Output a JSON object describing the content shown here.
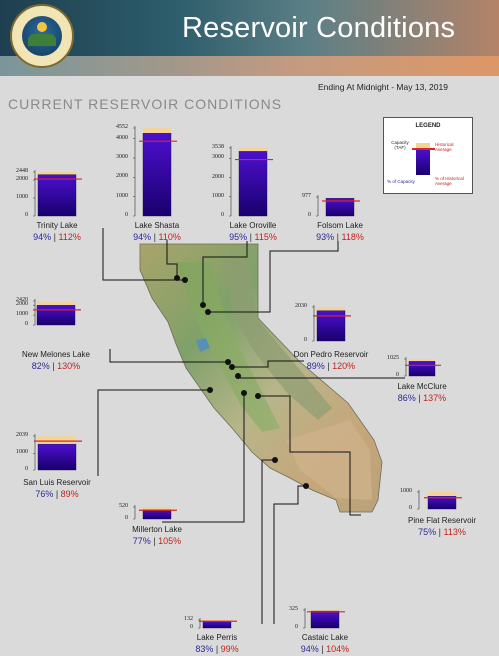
{
  "header": {
    "title": "Reservoir Conditions",
    "subtitle": "Ending At Midnight - May 13, 2019",
    "section": "CURRENT RESERVOIR CONDITIONS"
  },
  "legend": {
    "title": "LEGEND",
    "capacity_label": "Capacity (TAF)",
    "historical_label": "Historical Average",
    "pct_capacity_label": "% of Capacity",
    "pct_historical_label": "% of Historical Average"
  },
  "colors": {
    "capacity_fill": "#f2d39a",
    "storage_fill_top": "#4d0fd0",
    "storage_fill_bottom": "#18006c",
    "historical_line": "#d42a20",
    "pct_capacity_text": "#2a2a9a",
    "pct_historical_text": "#c0231c"
  },
  "separator": "|",
  "reservoirs": [
    {
      "name": "Trinity Lake",
      "capacity_taf": 2448,
      "ticks": [
        "2448",
        "2000",
        "1000",
        "0"
      ],
      "pct_capacity": "94%",
      "pct_historical": "112%",
      "capacity_frac": 0.94,
      "historical_frac": 0.84
    },
    {
      "name": "Lake Shasta",
      "capacity_taf": 4552,
      "ticks": [
        "4552",
        "4000",
        "3000",
        "2000",
        "1000",
        "0"
      ],
      "pct_capacity": "94%",
      "pct_historical": "110%",
      "capacity_frac": 0.94,
      "historical_frac": 0.85
    },
    {
      "name": "Lake Oroville",
      "capacity_taf": 3538,
      "ticks": [
        "3538",
        "3000",
        "2000",
        "1000",
        "0"
      ],
      "pct_capacity": "95%",
      "pct_historical": "115%",
      "capacity_frac": 0.95,
      "historical_frac": 0.83
    },
    {
      "name": "Folsom Lake",
      "capacity_taf": 977,
      "ticks": [
        "977",
        "0"
      ],
      "pct_capacity": "93%",
      "pct_historical": "118%",
      "capacity_frac": 0.93,
      "historical_frac": 0.79
    },
    {
      "name": "New Melones Lake",
      "capacity_taf": 2420,
      "ticks": [
        "2420",
        "2000",
        "1000",
        "0"
      ],
      "pct_capacity": "82%",
      "pct_historical": "130%",
      "capacity_frac": 0.82,
      "historical_frac": 0.63
    },
    {
      "name": "Don Pedro Reservoir",
      "capacity_taf": 2030,
      "ticks": [
        "2030",
        "0"
      ],
      "pct_capacity": "89%",
      "pct_historical": "120%",
      "capacity_frac": 0.89,
      "historical_frac": 0.74
    },
    {
      "name": "Lake McClure",
      "capacity_taf": 1025,
      "ticks": [
        "1025",
        "0"
      ],
      "pct_capacity": "86%",
      "pct_historical": "137%",
      "capacity_frac": 0.86,
      "historical_frac": 0.63
    },
    {
      "name": "San Luis Reservoir",
      "capacity_taf": 2039,
      "ticks": [
        "2039",
        "1000",
        "0"
      ],
      "pct_capacity": "76%",
      "pct_historical": "89%",
      "capacity_frac": 0.76,
      "historical_frac": 0.85
    },
    {
      "name": "Millerton Lake",
      "capacity_taf": 520,
      "ticks": [
        "520",
        "0"
      ],
      "pct_capacity": "77%",
      "pct_historical": "105%",
      "capacity_frac": 0.77,
      "historical_frac": 0.73
    },
    {
      "name": "Pine Flat Reservoir",
      "capacity_taf": 1000,
      "ticks": [
        "1000",
        "0"
      ],
      "pct_capacity": "75%",
      "pct_historical": "113%",
      "capacity_frac": 0.75,
      "historical_frac": 0.66
    },
    {
      "name": "Lake Perris",
      "capacity_taf": 132,
      "ticks": [
        "132",
        "0"
      ],
      "pct_capacity": "83%",
      "pct_historical": "99%",
      "capacity_frac": 0.83,
      "historical_frac": 0.84
    },
    {
      "name": "Castaic Lake",
      "capacity_taf": 325,
      "ticks": [
        "325",
        "0"
      ],
      "pct_capacity": "94%",
      "pct_historical": "104%",
      "capacity_frac": 0.94,
      "historical_frac": 0.9
    }
  ]
}
